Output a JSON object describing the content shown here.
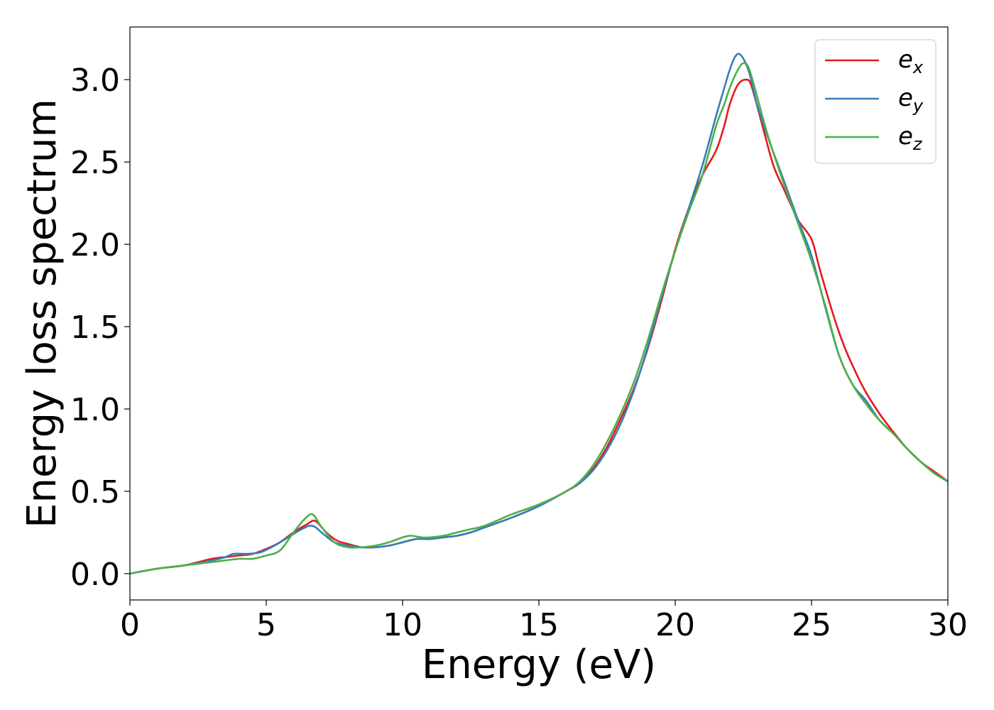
{
  "chart_data": {
    "type": "line",
    "title": "",
    "xlabel": "Energy (eV)",
    "ylabel": "Energy loss spectrum",
    "xlim": [
      0,
      30
    ],
    "ylim": [
      -0.16,
      3.32
    ],
    "xticks": [
      0,
      5,
      10,
      15,
      20,
      25,
      30
    ],
    "xtick_labels": [
      "0",
      "5",
      "10",
      "15",
      "20",
      "25",
      "30"
    ],
    "yticks": [
      0.0,
      0.5,
      1.0,
      1.5,
      2.0,
      2.5,
      3.0
    ],
    "ytick_labels": [
      "0.0",
      "0.5",
      "1.0",
      "1.5",
      "2.0",
      "2.5",
      "3.0"
    ],
    "grid": false,
    "legend_position": "top-right",
    "series": [
      {
        "name": "e_x",
        "legend_base": "e",
        "legend_sub": "x",
        "color": "#e41a1c",
        "x": [
          0,
          1,
          2,
          3,
          3.5,
          4,
          4.5,
          5,
          5.5,
          6,
          6.5,
          6.8,
          7.2,
          7.6,
          8,
          8.5,
          9,
          9.5,
          10,
          10.5,
          11,
          11.5,
          12,
          12.5,
          13,
          14,
          15,
          16,
          16.5,
          17,
          17.5,
          18,
          18.5,
          19,
          19.5,
          20,
          20.5,
          21,
          21.5,
          21.8,
          22,
          22.3,
          22.6,
          22.8,
          23.2,
          23.6,
          24,
          24.5,
          25,
          25.3,
          25.8,
          26.2,
          26.6,
          27,
          27.5,
          28,
          28.5,
          29,
          29.5,
          30
        ],
        "y": [
          0.0,
          0.03,
          0.05,
          0.09,
          0.1,
          0.11,
          0.12,
          0.15,
          0.19,
          0.25,
          0.3,
          0.32,
          0.25,
          0.2,
          0.18,
          0.16,
          0.16,
          0.17,
          0.19,
          0.21,
          0.21,
          0.22,
          0.23,
          0.25,
          0.28,
          0.34,
          0.41,
          0.5,
          0.55,
          0.64,
          0.77,
          0.94,
          1.13,
          1.37,
          1.66,
          1.97,
          2.22,
          2.42,
          2.57,
          2.72,
          2.85,
          2.97,
          3.0,
          2.96,
          2.72,
          2.48,
          2.33,
          2.15,
          2.03,
          1.85,
          1.57,
          1.38,
          1.23,
          1.1,
          0.97,
          0.86,
          0.76,
          0.68,
          0.62,
          0.56
        ]
      },
      {
        "name": "e_y",
        "legend_base": "e",
        "legend_sub": "y",
        "color": "#377eb8",
        "x": [
          0,
          1,
          2,
          3,
          3.5,
          3.8,
          4.3,
          4.8,
          5.3,
          5.8,
          6.3,
          6.7,
          7.1,
          7.5,
          8,
          8.5,
          9,
          9.5,
          10,
          10.5,
          11,
          11.5,
          12,
          12.5,
          13,
          14,
          15,
          16,
          16.5,
          17,
          17.5,
          18,
          18.5,
          19,
          19.5,
          20,
          20.5,
          21,
          21.5,
          21.8,
          22,
          22.2,
          22.4,
          22.7,
          23,
          23.4,
          24,
          24.5,
          25,
          25.5,
          26,
          26.5,
          27,
          27.5,
          28,
          28.5,
          29,
          29.5,
          30
        ],
        "y": [
          0.0,
          0.03,
          0.05,
          0.08,
          0.1,
          0.12,
          0.12,
          0.13,
          0.17,
          0.22,
          0.27,
          0.29,
          0.24,
          0.19,
          0.17,
          0.16,
          0.16,
          0.17,
          0.19,
          0.21,
          0.21,
          0.22,
          0.23,
          0.25,
          0.28,
          0.34,
          0.41,
          0.5,
          0.55,
          0.63,
          0.75,
          0.91,
          1.12,
          1.38,
          1.68,
          1.96,
          2.22,
          2.48,
          2.78,
          2.95,
          3.06,
          3.14,
          3.15,
          3.05,
          2.85,
          2.65,
          2.38,
          2.15,
          1.93,
          1.62,
          1.33,
          1.15,
          1.05,
          0.93,
          0.85,
          0.76,
          0.68,
          0.61,
          0.56
        ]
      },
      {
        "name": "e_z",
        "legend_base": "e",
        "legend_sub": "z",
        "color": "#4daf4a",
        "x": [
          0,
          1,
          2,
          3,
          3.5,
          4,
          4.5,
          5,
          5.5,
          6,
          6.4,
          6.7,
          7,
          7.5,
          8,
          8.5,
          9,
          9.5,
          10,
          10.3,
          10.7,
          11,
          11.5,
          12,
          12.5,
          13,
          14,
          15,
          16,
          16.5,
          17,
          17.5,
          18,
          18.5,
          19,
          19.5,
          20,
          20.5,
          21,
          21.5,
          21.8,
          22,
          22.3,
          22.5,
          22.7,
          23,
          23.4,
          24,
          24.5,
          25,
          25.5,
          26,
          26.5,
          27,
          27.5,
          28,
          28.5,
          29,
          29.5,
          30
        ],
        "y": [
          0.0,
          0.03,
          0.05,
          0.07,
          0.08,
          0.09,
          0.09,
          0.11,
          0.14,
          0.25,
          0.33,
          0.36,
          0.29,
          0.19,
          0.16,
          0.16,
          0.17,
          0.19,
          0.22,
          0.23,
          0.22,
          0.22,
          0.23,
          0.25,
          0.27,
          0.29,
          0.36,
          0.42,
          0.5,
          0.56,
          0.66,
          0.8,
          0.97,
          1.17,
          1.42,
          1.7,
          1.96,
          2.2,
          2.42,
          2.72,
          2.85,
          2.95,
          3.06,
          3.1,
          3.07,
          2.9,
          2.66,
          2.36,
          2.13,
          1.9,
          1.63,
          1.33,
          1.15,
          1.03,
          0.93,
          0.85,
          0.76,
          0.68,
          0.61,
          0.56
        ]
      }
    ]
  }
}
